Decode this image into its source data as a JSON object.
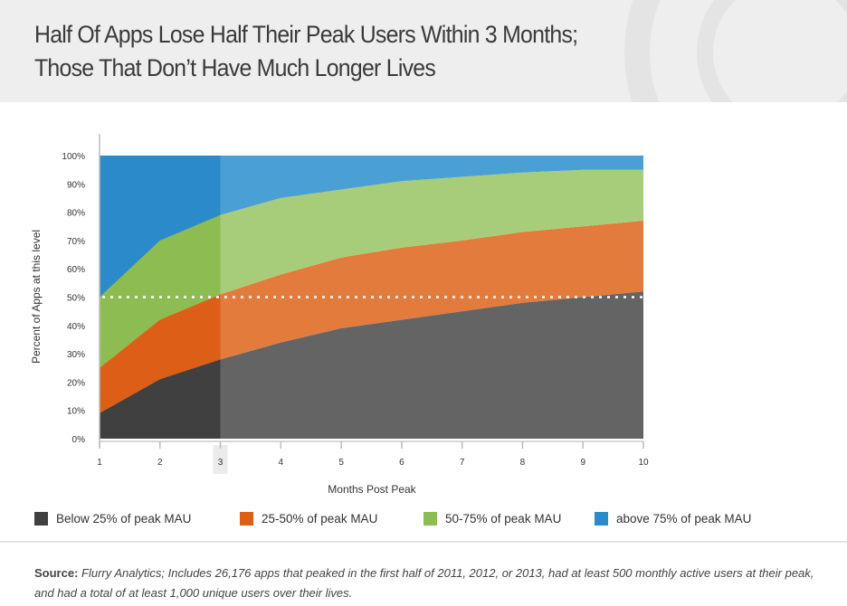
{
  "header": {
    "title_line1": "Half Of Apps Lose Half Their Peak Users Within 3 Months;",
    "title_line2": "Those That Don’t Have Much Longer Lives"
  },
  "chart_data": {
    "type": "area",
    "stacked": true,
    "xlabel": "Months Post Peak",
    "ylabel": "Percent of Apps at this level",
    "x": [
      1,
      2,
      3,
      4,
      5,
      6,
      7,
      8,
      9,
      10
    ],
    "xlim": [
      1,
      10
    ],
    "ylim": [
      0,
      100
    ],
    "y_ticks": [
      "0%",
      "10%",
      "20%",
      "30%",
      "40%",
      "50%",
      "60%",
      "70%",
      "80%",
      "90%",
      "100%"
    ],
    "x_ticks": [
      "1",
      "2",
      "3",
      "4",
      "5",
      "6",
      "7",
      "8",
      "9",
      "10"
    ],
    "highlighted_x_range": [
      1,
      3
    ],
    "reference_line": {
      "y": 50,
      "style": "dotted",
      "color": "#ffffff"
    },
    "grid": false,
    "legend_position": "bottom",
    "series": [
      {
        "name": "Below 25% of peak MAU",
        "color": "#646464",
        "highlight_color": "#404040",
        "values": [
          9,
          21,
          28,
          34,
          39,
          42,
          45,
          48,
          50,
          52
        ]
      },
      {
        "name": "25-50% of peak MAU",
        "color": "#e27b3c",
        "highlight_color": "#dd5e16",
        "values": [
          16,
          21,
          23,
          24,
          25,
          25.5,
          25,
          25,
          25,
          25
        ]
      },
      {
        "name": "50-75% of peak MAU",
        "color": "#a7cd7b",
        "highlight_color": "#8dbd52",
        "values": [
          25,
          28,
          28,
          27,
          24,
          23.5,
          22.5,
          21,
          20,
          18
        ]
      },
      {
        "name": "above 75% of peak MAU",
        "color": "#4aa0d5",
        "highlight_color": "#2b8ac9",
        "values": [
          50,
          30,
          21,
          15,
          12,
          9,
          7.5,
          6,
          5,
          5
        ]
      }
    ]
  },
  "source": {
    "label": "Source:",
    "text": "Flurry Analytics; Includes 26,176 apps that peaked in the first half of 2011, 2012, or 2013, had at least 500 monthly active users at their peak, and had a total of at least 1,000 unique users over their lives."
  }
}
